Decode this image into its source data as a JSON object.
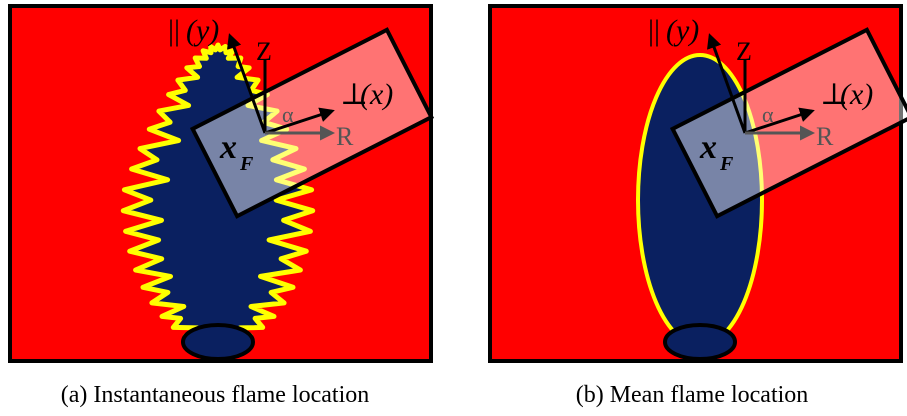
{
  "panels": [
    {
      "caption": "(a) Instantaneous flame location",
      "labels": {
        "parallel_symbol": "||",
        "parallel_axis": "(y)",
        "z": "Z",
        "perpendicular_symbol": "⊥",
        "perpendicular_axis": "(x)",
        "alpha": "α",
        "r": "R",
        "x": "x",
        "x_sub": "F"
      }
    },
    {
      "caption": "(b) Mean flame location",
      "labels": {
        "parallel_symbol": "||",
        "parallel_axis": "(y)",
        "z": "Z",
        "perpendicular_symbol": "⊥",
        "perpendicular_axis": "(x)",
        "alpha": "α",
        "r": "R",
        "x": "x",
        "x_sub": "F"
      }
    }
  ]
}
